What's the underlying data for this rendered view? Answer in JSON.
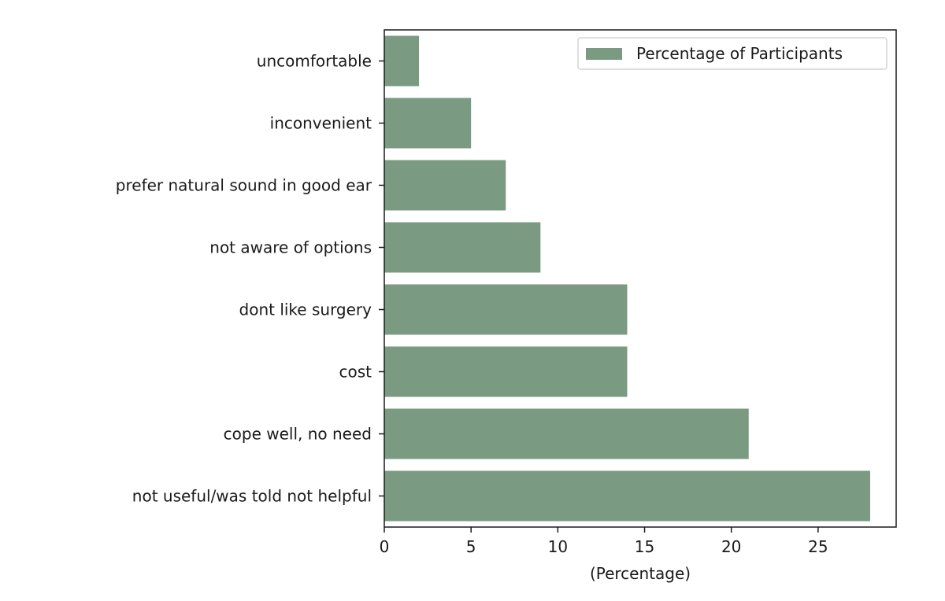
{
  "chart_data": {
    "type": "bar",
    "orientation": "horizontal",
    "categories": [
      "uncomfortable",
      "inconvenient",
      "prefer natural sound in good ear",
      "not aware of options",
      "dont like surgery",
      "cost",
      "cope well, no need",
      "not useful/was told not helpful"
    ],
    "series": [
      {
        "name": "Percentage of Participants",
        "values": [
          2,
          5,
          7,
          9,
          14,
          14,
          21,
          28
        ],
        "color": "#7a9a82"
      }
    ],
    "xlabel": "(Percentage)",
    "ylabel": "",
    "xlim": [
      0,
      29.5
    ],
    "xticks": [
      0,
      5,
      10,
      15,
      20,
      25
    ],
    "grid": false,
    "legend_position": "top-right"
  }
}
